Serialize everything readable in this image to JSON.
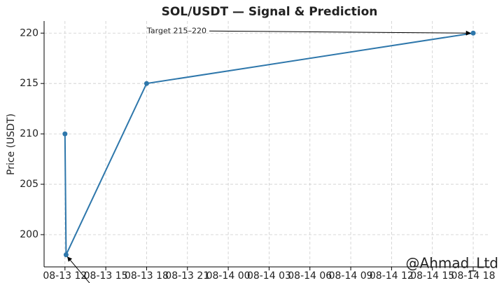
{
  "chart_data": {
    "type": "line",
    "title": "SOL/USDT — Signal & Prediction",
    "y_label": "Price (USDT)",
    "x": [
      "08-13 12:00",
      "08-13 12:05",
      "08-13 18:00",
      "08-14 18:00"
    ],
    "series": [
      {
        "name": "Price",
        "color": "#2e77ab",
        "values": [
          210,
          198,
          215,
          220
        ]
      }
    ],
    "xlim": [
      "08-13 10:28",
      "08-14 19:14"
    ],
    "xticks": [
      "08-13 12",
      "08-13 15",
      "08-13 18",
      "08-13 21",
      "08-14 00",
      "08-14 03",
      "08-14 06",
      "08-14 09",
      "08-14 12",
      "08-14 15",
      "08-14 18"
    ],
    "ylim": [
      196.8,
      221.2
    ],
    "yticks": [
      200,
      205,
      210,
      215,
      220
    ],
    "grid": true,
    "annotation": {
      "text": "Target 215–220",
      "color": "#1a7a1a"
    },
    "watermark": "@Ahmad_Ltd"
  }
}
